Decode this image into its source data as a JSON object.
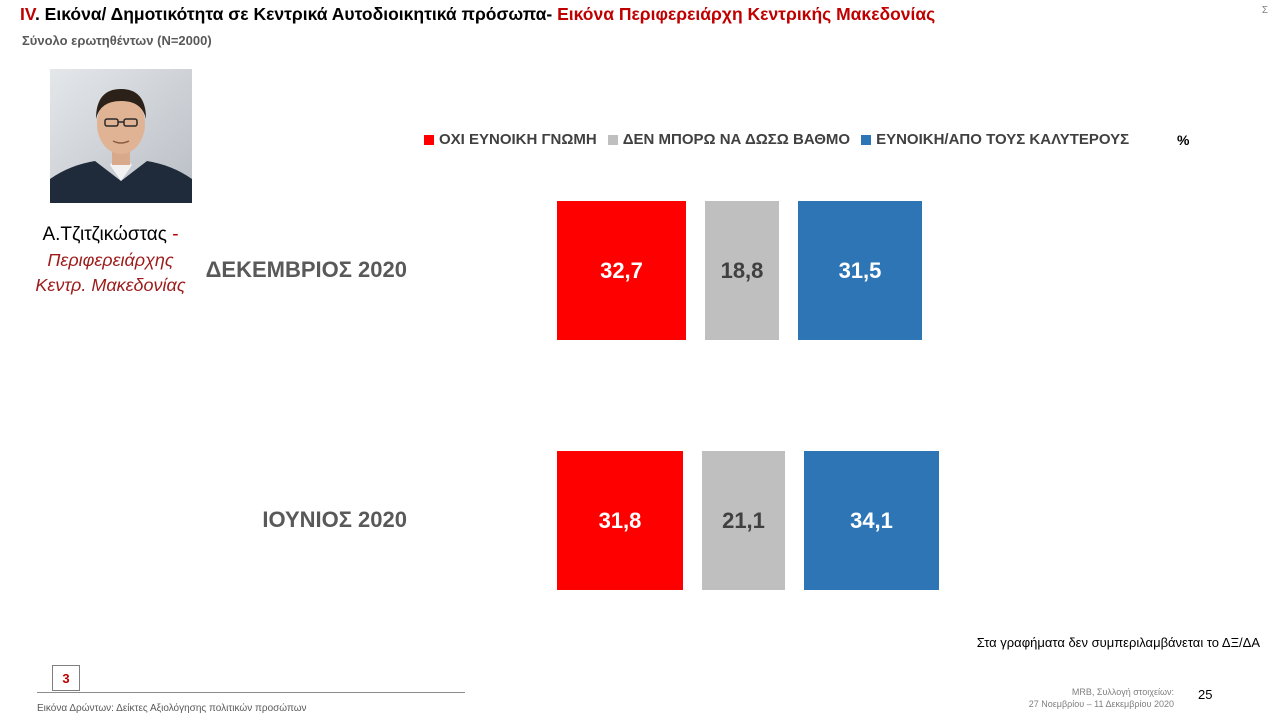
{
  "header": {
    "roman": "IV",
    "title_main": ". Εικόνα/ Δημοτικότητα σε Κεντρικά Αυτοδιοικητικά πρόσωπα- ",
    "title_red": "Εικόνα Περιφερειάρχη Κεντρικής Μακεδονίας",
    "subtitle": "Σύνολο ερωτηθέντων (N=2000)",
    "corner": "Σ"
  },
  "person": {
    "name": "Α.Τζιτζικώστας",
    "dash": " -",
    "role_line1": "Περιφερειάρχης",
    "role_line2": "Κεντρ. Μακεδονίας"
  },
  "legend": {
    "percent_sign": "%"
  },
  "colors": {
    "negative": "#ff0000",
    "neutral": "#bfbfbf",
    "positive": "#2e75b6"
  },
  "chart_data": {
    "type": "bar",
    "categories": [
      "ΔΕΚΕΜΒΡΙΟΣ 2020",
      "ΙΟΥΝΙΟΣ 2020"
    ],
    "series": [
      {
        "name": "ΟΧΙ ΕΥΝΟΙΚΗ ΓΝΩΜΗ",
        "values": [
          32.7,
          31.8
        ],
        "labels": [
          "32,7",
          "31,8"
        ],
        "color": "#ff0000",
        "text_color": "#ffffff"
      },
      {
        "name": "ΔΕΝ ΜΠΟΡΩ ΝΑ ΔΩΣΩ ΒΑΘΜΟ",
        "values": [
          18.8,
          21.1
        ],
        "labels": [
          "18,8",
          "21,1"
        ],
        "color": "#bfbfbf",
        "text_color": "#404040"
      },
      {
        "name": "ΕΥΝΟΙΚΗ/ΑΠΟ ΤΟΥΣ ΚΑΛΥΤΕΡΟΥΣ",
        "values": [
          31.5,
          34.1
        ],
        "labels": [
          "31,5",
          "34,1"
        ],
        "color": "#2e75b6",
        "text_color": "#ffffff"
      }
    ],
    "unit": "%",
    "legend_position": "top"
  },
  "footer": {
    "note": "Στα γραφήματα δεν συμπεριλαμβάνεται το ΔΞ/ΔΑ",
    "box_number": "3",
    "caption": "Εικόνα Δρώντων: Δείκτες Αξιολόγησης πολιτικών προσώπων",
    "source_line1": "MRB, Συλλογή στοιχείων:",
    "source_line2": "27 Νοεμβρίου –  11 Δεκεμβρίου 2020",
    "page_number": "25"
  }
}
